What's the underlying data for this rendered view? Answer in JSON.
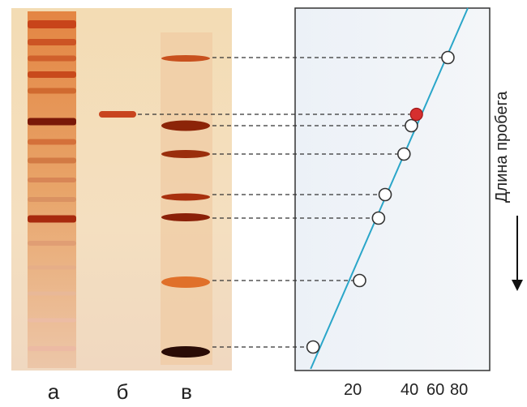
{
  "gel": {
    "lanes": [
      {
        "id": "a",
        "label": "а"
      },
      {
        "id": "b",
        "label": "б"
      },
      {
        "id": "c",
        "label": "в"
      }
    ]
  },
  "plot": {
    "axis_title": "Длина пробега",
    "x_ticks": [
      "20",
      "40",
      "60",
      "80"
    ],
    "line_color": "#2aa6c9",
    "unknown_color": "#d62f2f"
  },
  "chart_data": {
    "type": "scatter",
    "x_scale": "log",
    "xlabel": "",
    "ylabel": "Длина пробега",
    "x_ticks": [
      20,
      40,
      60,
      80
    ],
    "series": [
      {
        "kind": "standards",
        "marker": "open-circle",
        "x": [
          10.5,
          20,
          26,
          28.5,
          37,
          41,
          68
        ]
      },
      {
        "kind": "unknown",
        "marker": "filled-circle",
        "color": "#d62f2f",
        "x": [
          44
        ]
      }
    ],
    "fit": {
      "type": "line",
      "color": "#2aa6c9"
    }
  }
}
